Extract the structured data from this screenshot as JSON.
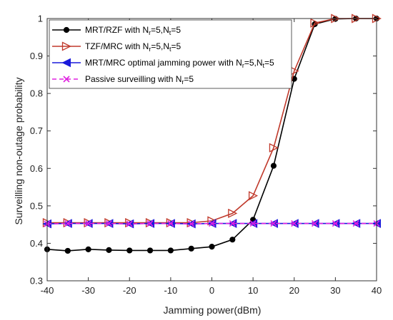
{
  "chart_data": {
    "type": "line",
    "xlabel": "Jamming power(dBm)",
    "ylabel": "Surveilling non-outage probability",
    "xlim": [
      -40,
      40
    ],
    "ylim": [
      0.3,
      1.0
    ],
    "xticks": [
      -40,
      -30,
      -20,
      -10,
      0,
      10,
      20,
      30,
      40
    ],
    "yticks": [
      0.3,
      0.4,
      0.5,
      0.6,
      0.7,
      0.8,
      0.9,
      1.0
    ],
    "xtick_labels": [
      "-40",
      "-30",
      "-20",
      "-10",
      "0",
      "10",
      "20",
      "30",
      "40"
    ],
    "ytick_labels": [
      "0.3",
      "0.4",
      "0.5",
      "0.6",
      "0.7",
      "0.8",
      "0.9",
      "1"
    ],
    "grid": false,
    "legend_position": "top-left",
    "x": [
      -40,
      -35,
      -30,
      -25,
      -20,
      -15,
      -10,
      -5,
      0,
      5,
      10,
      15,
      20,
      25,
      30,
      35,
      40
    ],
    "series": [
      {
        "name": "MRT/RZF with N_r=5,N_t=5",
        "legend": {
          "main": "MRT/RZF with N",
          "s1": "r",
          "mid": "=5,N",
          "s2": "t",
          "end": "=5"
        },
        "color": "#000000",
        "marker": "circle",
        "values": [
          0.384,
          0.38,
          0.384,
          0.382,
          0.381,
          0.381,
          0.381,
          0.386,
          0.391,
          0.41,
          0.463,
          0.607,
          0.839,
          0.985,
          0.999,
          1.0,
          1.0
        ]
      },
      {
        "name": "TZF/MRC with N_r=5,N_t=5",
        "legend": {
          "main": "TZF/MRC with N",
          "s1": "r",
          "mid": "=5,N",
          "s2": "t",
          "end": "=5"
        },
        "color": "#c0392b",
        "marker": "triangle-right",
        "values": [
          0.455,
          0.455,
          0.455,
          0.455,
          0.455,
          0.455,
          0.455,
          0.455,
          0.46,
          0.48,
          0.527,
          0.655,
          0.86,
          0.988,
          1.0,
          1.0,
          1.0
        ]
      },
      {
        "name": "MRT/MRC optimal jamming power with N_r=5,N_t=5",
        "legend": {
          "main": "MRT/MRC optimal jamming power with N",
          "s1": "r",
          "mid": "=5,N",
          "s2": "t",
          "end": "=5"
        },
        "color": "#1a1adb",
        "marker": "triangle-left",
        "values": [
          0.452,
          0.453,
          0.453,
          0.453,
          0.452,
          0.453,
          0.453,
          0.452,
          0.453,
          0.453,
          0.453,
          0.453,
          0.453,
          0.453,
          0.453,
          0.453,
          0.453
        ]
      },
      {
        "name": "Passive surveilling with N_r=5",
        "legend": {
          "main": "Passive surveilling with N",
          "s1": "r",
          "mid": "=5",
          "s2": "",
          "end": ""
        },
        "color": "#e020e0",
        "marker": "x",
        "dashed": true,
        "values": [
          0.452,
          0.453,
          0.453,
          0.453,
          0.452,
          0.453,
          0.453,
          0.452,
          0.453,
          0.453,
          0.453,
          0.453,
          0.453,
          0.453,
          0.453,
          0.453,
          0.453
        ]
      }
    ]
  }
}
